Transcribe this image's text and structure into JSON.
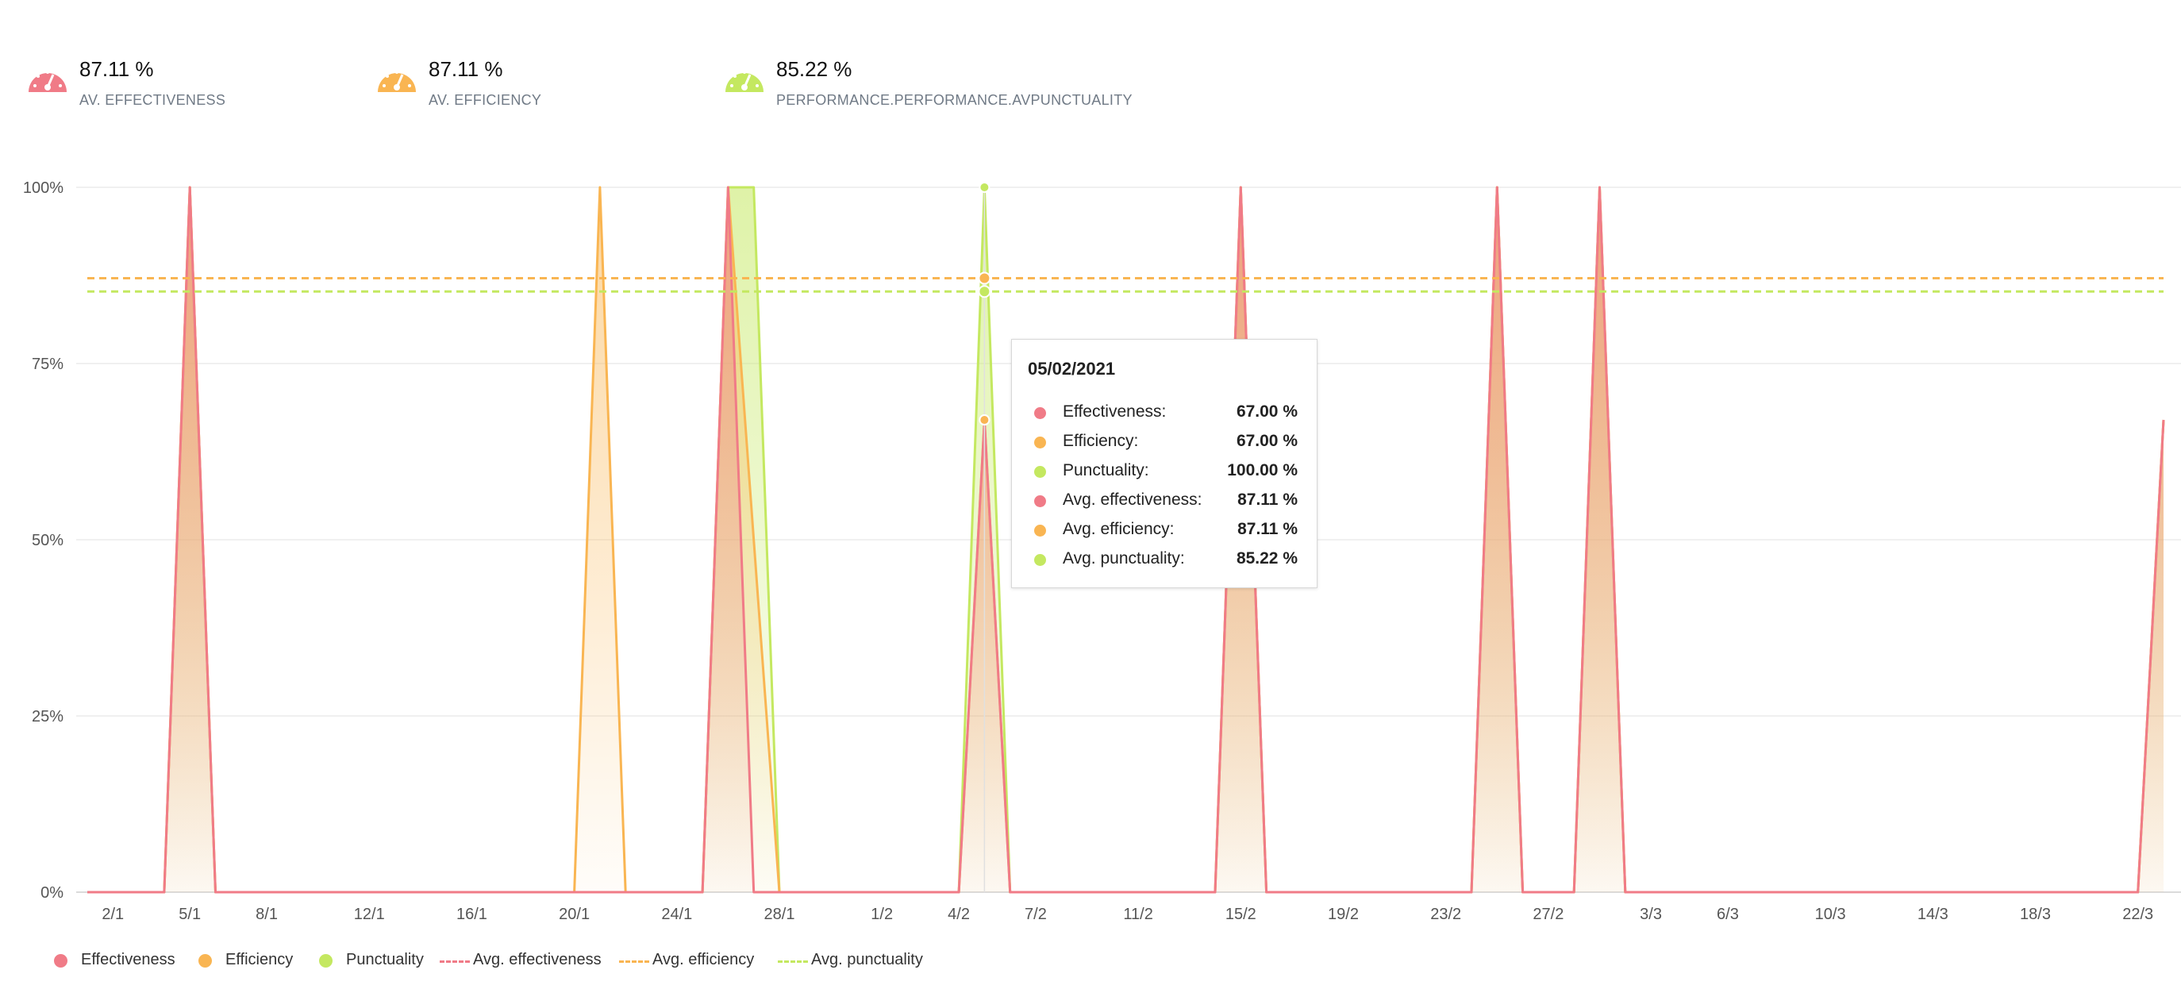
{
  "kpis": [
    {
      "value": "87.11 %",
      "label": "AV. EFFECTIVENESS",
      "color": "#f07b87",
      "icon": "gauge-icon"
    },
    {
      "value": "87.11 %",
      "label": "AV. EFFICIENCY",
      "color": "#f9b552",
      "icon": "gauge-icon"
    },
    {
      "value": "85.22 %",
      "label": "PERFORMANCE.PERFORMANCE.AVPUNCTUALITY",
      "color": "#c4e860",
      "icon": "gauge-icon"
    }
  ],
  "chart_data": {
    "type": "area",
    "x_start": "2021-01-01",
    "x_end": "2021-03-23",
    "ylim": [
      0,
      100
    ],
    "y_ticks": [
      "0%",
      "25%",
      "50%",
      "75%",
      "100%"
    ],
    "x_ticks": [
      {
        "date": "2021-01-02",
        "label": "2/1"
      },
      {
        "date": "2021-01-05",
        "label": "5/1"
      },
      {
        "date": "2021-01-08",
        "label": "8/1"
      },
      {
        "date": "2021-01-12",
        "label": "12/1"
      },
      {
        "date": "2021-01-16",
        "label": "16/1"
      },
      {
        "date": "2021-01-20",
        "label": "20/1"
      },
      {
        "date": "2021-01-24",
        "label": "24/1"
      },
      {
        "date": "2021-01-28",
        "label": "28/1"
      },
      {
        "date": "2021-02-01",
        "label": "1/2"
      },
      {
        "date": "2021-02-04",
        "label": "4/2"
      },
      {
        "date": "2021-02-07",
        "label": "7/2"
      },
      {
        "date": "2021-02-11",
        "label": "11/2"
      },
      {
        "date": "2021-02-15",
        "label": "15/2"
      },
      {
        "date": "2021-02-19",
        "label": "19/2"
      },
      {
        "date": "2021-02-23",
        "label": "23/2"
      },
      {
        "date": "2021-02-27",
        "label": "27/2"
      },
      {
        "date": "2021-03-03",
        "label": "3/3"
      },
      {
        "date": "2021-03-06",
        "label": "6/3"
      },
      {
        "date": "2021-03-10",
        "label": "10/3"
      },
      {
        "date": "2021-03-14",
        "label": "14/3"
      },
      {
        "date": "2021-03-18",
        "label": "18/3"
      },
      {
        "date": "2021-03-22",
        "label": "22/3"
      }
    ],
    "series": [
      {
        "name": "Effectiveness",
        "color": "#f07b87",
        "points": [
          [
            "2021-01-01",
            0
          ],
          [
            "2021-01-04",
            0
          ],
          [
            "2021-01-05",
            100
          ],
          [
            "2021-01-06",
            0
          ],
          [
            "2021-01-25",
            0
          ],
          [
            "2021-01-26",
            100
          ],
          [
            "2021-01-27",
            0
          ],
          [
            "2021-02-04",
            0
          ],
          [
            "2021-02-05",
            67
          ],
          [
            "2021-02-06",
            0
          ],
          [
            "2021-02-14",
            0
          ],
          [
            "2021-02-15",
            100
          ],
          [
            "2021-02-16",
            0
          ],
          [
            "2021-02-24",
            0
          ],
          [
            "2021-02-25",
            100
          ],
          [
            "2021-02-26",
            0
          ],
          [
            "2021-02-28",
            0
          ],
          [
            "2021-03-01",
            100
          ],
          [
            "2021-03-02",
            0
          ],
          [
            "2021-03-22",
            0
          ],
          [
            "2021-03-23",
            67
          ]
        ]
      },
      {
        "name": "Efficiency",
        "color": "#f9b552",
        "points": [
          [
            "2021-01-01",
            0
          ],
          [
            "2021-01-04",
            0
          ],
          [
            "2021-01-05",
            100
          ],
          [
            "2021-01-06",
            0
          ],
          [
            "2021-01-20",
            0
          ],
          [
            "2021-01-21",
            100
          ],
          [
            "2021-01-22",
            0
          ],
          [
            "2021-01-25",
            0
          ],
          [
            "2021-01-26",
            100
          ],
          [
            "2021-01-28",
            0
          ],
          [
            "2021-02-04",
            0
          ],
          [
            "2021-02-05",
            67
          ],
          [
            "2021-02-06",
            0
          ],
          [
            "2021-02-14",
            0
          ],
          [
            "2021-02-15",
            100
          ],
          [
            "2021-02-16",
            0
          ],
          [
            "2021-02-24",
            0
          ],
          [
            "2021-02-25",
            100
          ],
          [
            "2021-02-26",
            0
          ],
          [
            "2021-02-28",
            0
          ],
          [
            "2021-03-01",
            100
          ],
          [
            "2021-03-02",
            0
          ],
          [
            "2021-03-22",
            0
          ],
          [
            "2021-03-23",
            67
          ]
        ]
      },
      {
        "name": "Punctuality",
        "color": "#c4e860",
        "points": [
          [
            "2021-01-01",
            0
          ],
          [
            "2021-01-04",
            0
          ],
          [
            "2021-01-05",
            100
          ],
          [
            "2021-01-06",
            0
          ],
          [
            "2021-01-25",
            0
          ],
          [
            "2021-01-26",
            100
          ],
          [
            "2021-01-27",
            100
          ],
          [
            "2021-01-28",
            0
          ],
          [
            "2021-02-04",
            0
          ],
          [
            "2021-02-05",
            100
          ],
          [
            "2021-02-06",
            0
          ],
          [
            "2021-02-14",
            0
          ],
          [
            "2021-02-15",
            100
          ],
          [
            "2021-02-16",
            0
          ],
          [
            "2021-02-24",
            0
          ],
          [
            "2021-02-25",
            100
          ],
          [
            "2021-02-26",
            0
          ],
          [
            "2021-02-28",
            0
          ],
          [
            "2021-03-01",
            100
          ],
          [
            "2021-03-02",
            0
          ],
          [
            "2021-03-22",
            0
          ],
          [
            "2021-03-23",
            67
          ]
        ]
      }
    ],
    "averages": [
      {
        "name": "Avg. effectiveness",
        "value": 87.11,
        "color": "#f07b87"
      },
      {
        "name": "Avg. efficiency",
        "value": 87.11,
        "color": "#f9b552"
      },
      {
        "name": "Avg. punctuality",
        "value": 85.22,
        "color": "#c4e860"
      }
    ],
    "hover_date": "2021-02-05",
    "grid": true,
    "legend_position": "bottom-left"
  },
  "tooltip": {
    "date": "05/02/2021",
    "rows": [
      {
        "name": "Effectiveness:",
        "value": "67.00 %",
        "color": "#f07b87"
      },
      {
        "name": "Efficiency:",
        "value": "67.00 %",
        "color": "#f9b552"
      },
      {
        "name": "Punctuality:",
        "value": "100.00 %",
        "color": "#c4e860"
      },
      {
        "name": "Avg. effectiveness:",
        "value": "87.11 %",
        "color": "#f07b87"
      },
      {
        "name": "Avg. efficiency:",
        "value": "87.11 %",
        "color": "#f9b552"
      },
      {
        "name": "Avg. punctuality:",
        "value": "85.22 %",
        "color": "#c4e860"
      }
    ]
  },
  "legend": [
    {
      "label": "Effectiveness",
      "kind": "dot",
      "color": "#f07b87"
    },
    {
      "label": "Efficiency",
      "kind": "dot",
      "color": "#f9b552"
    },
    {
      "label": "Punctuality",
      "kind": "dot",
      "color": "#c4e860"
    },
    {
      "label": "Avg. effectiveness",
      "kind": "dash",
      "color": "#f07b87"
    },
    {
      "label": "Avg. efficiency",
      "kind": "dash",
      "color": "#f9b552"
    },
    {
      "label": "Avg. punctuality",
      "kind": "dash",
      "color": "#c4e860"
    }
  ]
}
